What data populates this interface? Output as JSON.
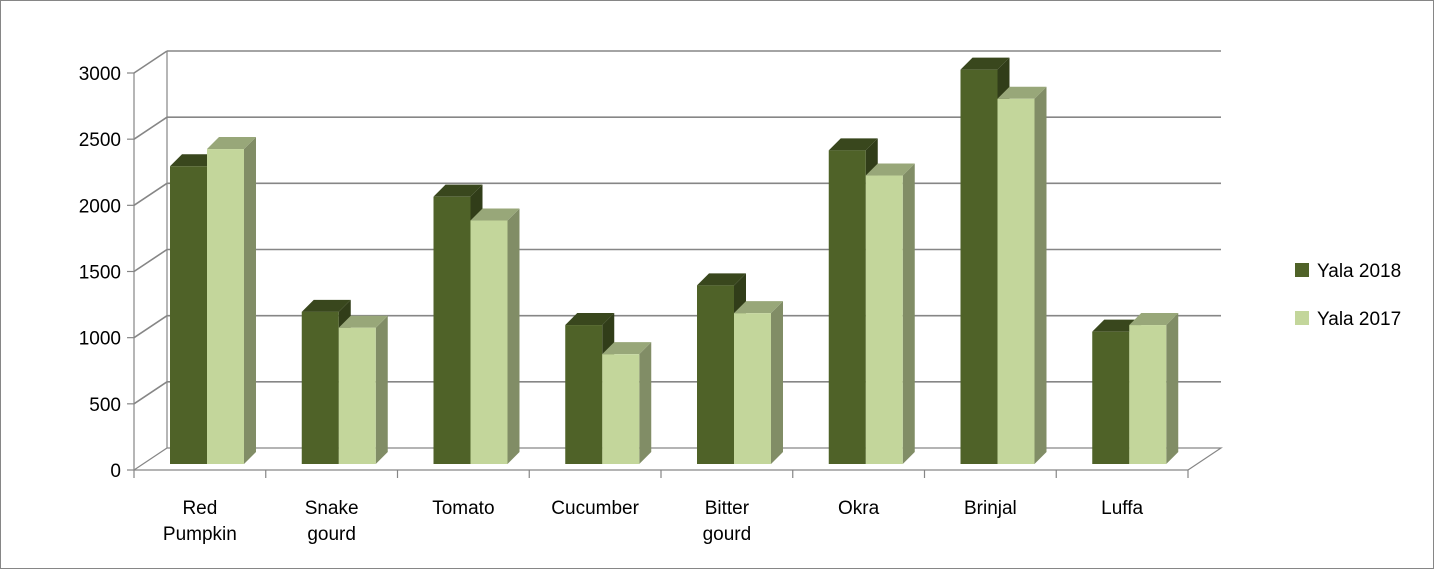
{
  "chart_data": {
    "type": "bar",
    "categories": [
      "Red Pumpkin",
      "Snake gourd",
      "Tomato",
      "Cucumber",
      "Bitter gourd",
      "Okra",
      "Brinjal",
      "Luffa"
    ],
    "category_lines": [
      [
        "Red",
        "Pumpkin"
      ],
      [
        "Snake",
        "gourd"
      ],
      [
        "Tomato"
      ],
      [
        "Cucumber"
      ],
      [
        "Bitter",
        "gourd"
      ],
      [
        "Okra"
      ],
      [
        "Brinjal"
      ],
      [
        "Luffa"
      ]
    ],
    "series": [
      {
        "name": "Yala 2018",
        "color": "#4f6228",
        "values": [
          2250,
          1150,
          2020,
          1050,
          1350,
          2370,
          2980,
          1000
        ]
      },
      {
        "name": "Yala 2017",
        "color": "#c3d69b",
        "values": [
          2380,
          1030,
          1840,
          830,
          1140,
          2180,
          2760,
          1050
        ]
      }
    ],
    "yticks": [
      0,
      500,
      1000,
      1500,
      2000,
      2500,
      3000
    ],
    "ylim": [
      0,
      3000
    ],
    "title": "",
    "xlabel": "",
    "ylabel": "",
    "grid": true,
    "legend_position": "right",
    "style": "3d-clustered-column"
  }
}
